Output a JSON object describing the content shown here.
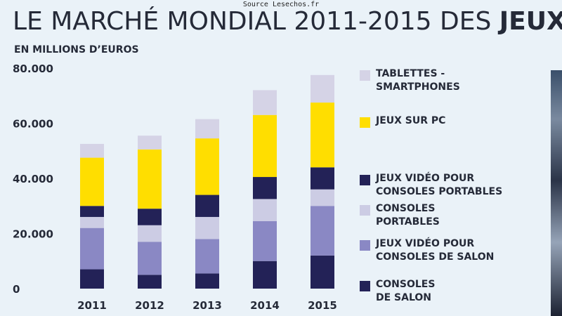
{
  "source": "Source Lesechos.fr",
  "title_regular": "LE MARCHÉ MONDIAL 2011-2015 DES ",
  "title_bold": "JEUX",
  "subtitle": "EN MILLIONS D’EUROS",
  "chart_data": {
    "type": "bar",
    "stacked": true,
    "categories": [
      "2011",
      "2012",
      "2013",
      "2014",
      "2015"
    ],
    "ylim": [
      0,
      80000
    ],
    "yticks": [
      "0",
      "20.000",
      "40.000",
      "60.000",
      "80.000"
    ],
    "ytick_values": [
      0,
      20000,
      40000,
      60000,
      80000
    ],
    "grid": false,
    "legend_position": "right",
    "series": [
      {
        "name": "CONSOLES DE SALON",
        "color": "#232257",
        "values": [
          7000,
          5000,
          5500,
          10000,
          12000
        ]
      },
      {
        "name": "JEUX VIDÉO POUR CONSOLES DE SALON",
        "color": "#8a88c4",
        "values": [
          15000,
          12000,
          12500,
          14500,
          18000
        ]
      },
      {
        "name": "CONSOLES PORTABLES",
        "color": "#cccce4",
        "values": [
          4000,
          6000,
          8000,
          8000,
          6000
        ]
      },
      {
        "name": "JEUX VIDÉO POUR CONSOLES PORTABLES",
        "color": "#232257",
        "values": [
          4000,
          6000,
          8000,
          8000,
          8000
        ]
      },
      {
        "name": "JEUX SUR PC",
        "color": "#ffde00",
        "values": [
          17500,
          21500,
          20500,
          22500,
          23500
        ]
      },
      {
        "name": "TABLETTES - SMARTPHONES",
        "color": "#d5d3e6",
        "values": [
          5000,
          5000,
          7000,
          9000,
          10000
        ]
      }
    ]
  },
  "legend": [
    {
      "line1": "TABLETTES -",
      "line2": "SMARTPHONES",
      "color": "#d5d3e6"
    },
    {
      "line1": "JEUX SUR PC",
      "line2": "",
      "color": "#ffde00"
    },
    {
      "line1": "JEUX VIDÉO POUR",
      "line2": "CONSOLES PORTABLES",
      "color": "#232257"
    },
    {
      "line1": "CONSOLES",
      "line2": "PORTABLES",
      "color": "#cccce4"
    },
    {
      "line1": "JEUX VIDÉO POUR",
      "line2": "CONSOLES DE SALON",
      "color": "#8a88c4"
    },
    {
      "line1": "CONSOLES",
      "line2": "DE SALON",
      "color": "#232257"
    }
  ]
}
